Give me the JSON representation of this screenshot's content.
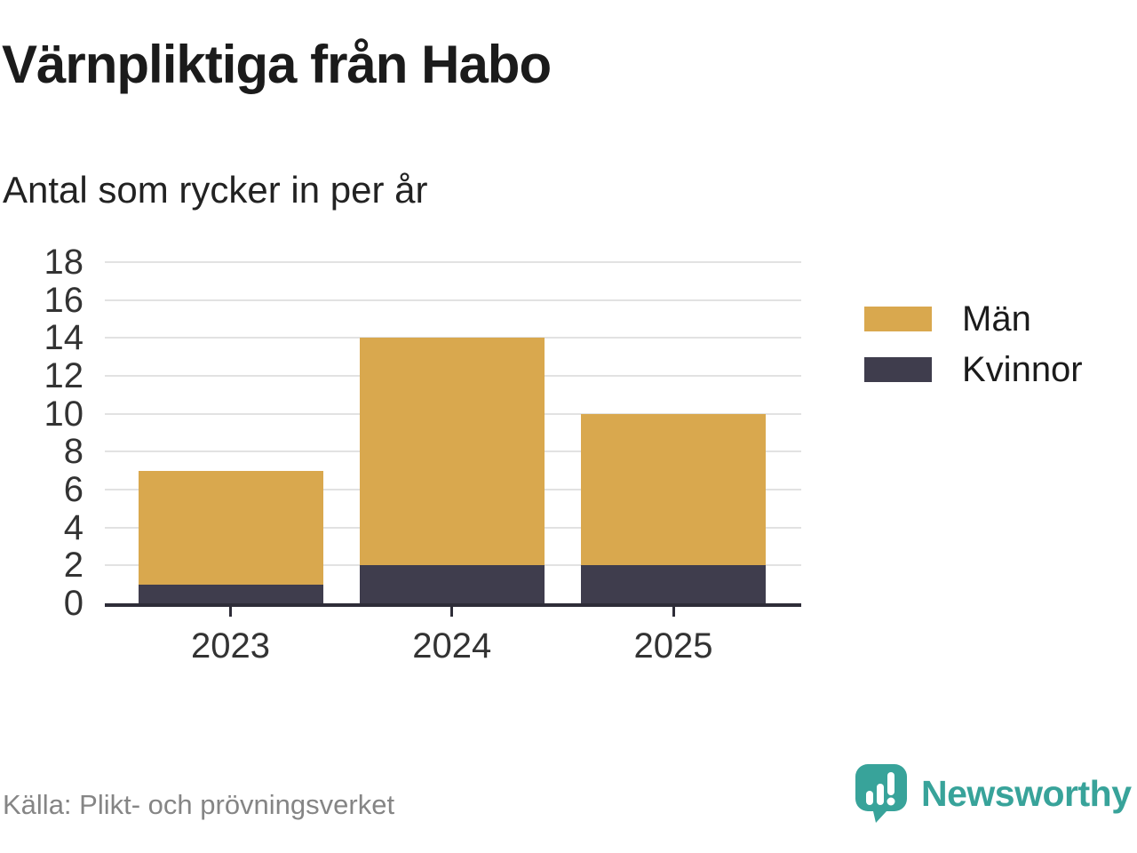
{
  "header": {
    "title": "Värnpliktiga från Habo",
    "subtitle": "Antal som rycker in per år"
  },
  "chart_data": {
    "type": "bar",
    "stacked": true,
    "title": "Värnpliktiga från Habo",
    "subtitle": "Antal som rycker in per år",
    "categories": [
      "2023",
      "2024",
      "2025"
    ],
    "series": [
      {
        "name": "Kvinnor",
        "color": "#3f3d4d",
        "values": [
          1,
          2,
          2
        ]
      },
      {
        "name": "Män",
        "color": "#d9a84e",
        "values": [
          6,
          12,
          8
        ]
      }
    ],
    "totals": [
      7,
      14,
      10
    ],
    "xlabel": "",
    "ylabel": "",
    "ylim": [
      0,
      18
    ],
    "ytick_step": 2,
    "grid": true,
    "legend_position": "right",
    "legend_order": [
      "Män",
      "Kvinnor"
    ]
  },
  "footer": {
    "source": "Källa: Plikt- och prövningsverket",
    "brand": "Newsworthy"
  },
  "colors": {
    "men": "#d9a84e",
    "women": "#3f3d4d",
    "axis": "#2e2d38",
    "grid": "#e2e2e2",
    "text": "#1b1b1b",
    "tick_text": "#333333",
    "muted": "#858585",
    "brand_teal": "#38a39a"
  }
}
